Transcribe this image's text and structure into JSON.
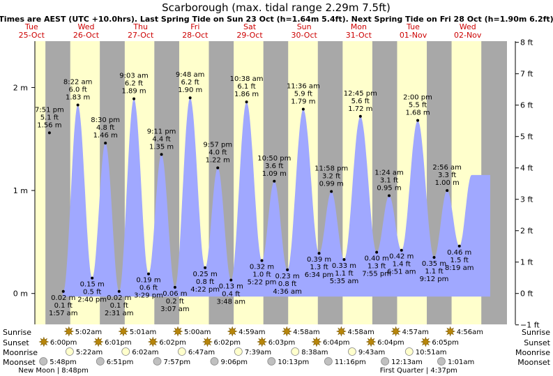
{
  "chart_data": {
    "type": "area",
    "title": "Scarborough (max. tidal range 2.29m 7.5ft)",
    "subtitle": "Times are AEST (UTC +10.0hrs). Last Spring Tide on Sun 23 Oct (h=1.64m 5.4ft). Next Spring Tide on Fri 28 Oct (h=1.90m 6.2ft)",
    "ylabel_left": "m",
    "ylabel_right": "ft",
    "ylim_m": [
      -0.3,
      2.45
    ],
    "y_ticks_m": [
      {
        "v": 0,
        "label": "0 m"
      },
      {
        "v": 1,
        "label": "1 m"
      },
      {
        "v": 2,
        "label": "2 m"
      }
    ],
    "y_ticks_ft": [
      {
        "v": -1,
        "label": "−1 ft"
      },
      {
        "v": 0,
        "label": "0 ft"
      },
      {
        "v": 1,
        "label": "1 ft"
      },
      {
        "v": 2,
        "label": "2 ft"
      },
      {
        "v": 3,
        "label": "3 ft"
      },
      {
        "v": 4,
        "label": "4 ft"
      },
      {
        "v": 5,
        "label": "5 ft"
      },
      {
        "v": 6,
        "label": "6 ft"
      },
      {
        "v": 7,
        "label": "7 ft"
      },
      {
        "v": 8,
        "label": "8 ft"
      }
    ],
    "x_range_days": [
      0.56,
      9.22
    ],
    "days": [
      {
        "day": "Tue",
        "date": "25-Oct",
        "center": 0.5
      },
      {
        "day": "Wed",
        "date": "26-Oct",
        "center": 1.5
      },
      {
        "day": "Thu",
        "date": "27-Oct",
        "center": 2.5
      },
      {
        "day": "Fri",
        "date": "28-Oct",
        "center": 3.5
      },
      {
        "day": "Sat",
        "date": "29-Oct",
        "center": 4.5
      },
      {
        "day": "Sun",
        "date": "30-Oct",
        "center": 5.5
      },
      {
        "day": "Mon",
        "date": "31-Oct",
        "center": 6.5
      },
      {
        "day": "Tue",
        "date": "01-Nov",
        "center": 7.5
      },
      {
        "day": "Wed",
        "date": "02-Nov",
        "center": 8.5
      }
    ],
    "night_bands": [
      [
        0.56,
        0.2097
      ],
      [
        0.7535,
        1.209
      ],
      [
        1.7514,
        2.2083
      ],
      [
        2.7514,
        3.2076
      ],
      [
        3.7514,
        4.2069
      ],
      [
        4.7514,
        5.2063
      ],
      [
        5.7507,
        6.2056
      ],
      [
        6.75,
        7.2049
      ],
      [
        7.7493,
        8.2042
      ],
      [
        8.7493,
        9.22
      ]
    ],
    "tides": [
      {
        "t": 0.8271,
        "h": 1.56,
        "type": "high",
        "time": "7:51 pm",
        "ft": "5.1 ft",
        "m": "1.56 m"
      },
      {
        "t": 1.0813,
        "h": 0.02,
        "type": "low",
        "time": "1:57 am",
        "ft": "0.1 ft",
        "m": "0.02 m"
      },
      {
        "t": 1.3486,
        "h": 1.83,
        "type": "high",
        "time": "8:22 am",
        "ft": "6.0 ft",
        "m": "1.83 m"
      },
      {
        "t": 1.6111,
        "h": 0.15,
        "type": "low",
        "time": "2:40 pm",
        "ft": "0.5 ft",
        "m": "0.15 m"
      },
      {
        "t": 1.8542,
        "h": 1.46,
        "type": "high",
        "time": "8:30 pm",
        "ft": "4.8 ft",
        "m": "1.46 m"
      },
      {
        "t": 2.1049,
        "h": 0.02,
        "type": "low",
        "time": "2:31 am",
        "ft": "0.1 ft",
        "m": "0.02 m"
      },
      {
        "t": 2.3771,
        "h": 1.89,
        "type": "high",
        "time": "9:03 am",
        "ft": "6.2 ft",
        "m": "1.89 m"
      },
      {
        "t": 2.6451,
        "h": 0.19,
        "type": "low",
        "time": "3:29 pm",
        "ft": "0.6 ft",
        "m": "0.19 m"
      },
      {
        "t": 2.8826,
        "h": 1.35,
        "type": "high",
        "time": "9:11 pm",
        "ft": "4.4 ft",
        "m": "1.35 m"
      },
      {
        "t": 3.1299,
        "h": 0.06,
        "type": "low",
        "time": "3:07 am",
        "ft": "0.2 ft",
        "m": "0.06 m"
      },
      {
        "t": 3.4083,
        "h": 1.9,
        "type": "high",
        "time": "9:48 am",
        "ft": "6.2 ft",
        "m": "1.90 m"
      },
      {
        "t": 3.6826,
        "h": 0.25,
        "type": "low",
        "time": "4:22 pm",
        "ft": "0.8 ft",
        "m": "0.25 m"
      },
      {
        "t": 3.9146,
        "h": 1.22,
        "type": "high",
        "time": "9:57 pm",
        "ft": "4.0 ft",
        "m": "1.22 m"
      },
      {
        "t": 4.1583,
        "h": 0.13,
        "type": "low",
        "time": "3:48 am",
        "ft": "0.4 ft",
        "m": "0.13 m"
      },
      {
        "t": 4.4431,
        "h": 1.86,
        "type": "high",
        "time": "10:38 am",
        "ft": "6.1 ft",
        "m": "1.86 m"
      },
      {
        "t": 4.7236,
        "h": 0.32,
        "type": "low",
        "time": "5:22 pm",
        "ft": "1.0 ft",
        "m": "0.32 m"
      },
      {
        "t": 4.9514,
        "h": 1.09,
        "type": "high",
        "time": "10:50 pm",
        "ft": "3.6 ft",
        "m": "1.09 m"
      },
      {
        "t": 5.1917,
        "h": 0.23,
        "type": "low",
        "time": "4:36 am",
        "ft": "0.8 ft",
        "m": "0.23 m"
      },
      {
        "t": 5.4833,
        "h": 1.79,
        "type": "high",
        "time": "11:36 am",
        "ft": "5.9 ft",
        "m": "1.79 m"
      },
      {
        "t": 5.7736,
        "h": 0.39,
        "type": "low",
        "time": "6:34 pm",
        "ft": "1.3 ft",
        "m": "0.39 m"
      },
      {
        "t": 5.9986,
        "h": 0.99,
        "type": "high",
        "time": "11:58 pm",
        "ft": "3.2 ft",
        "m": "0.99 m"
      },
      {
        "t": 6.2326,
        "h": 0.33,
        "type": "low",
        "time": "5:35 am",
        "ft": "1.1 ft",
        "m": "0.33 m"
      },
      {
        "t": 6.5313,
        "h": 1.72,
        "type": "high",
        "time": "12:45 pm",
        "ft": "5.6 ft",
        "m": "1.72 m"
      },
      {
        "t": 6.8299,
        "h": 0.4,
        "type": "low",
        "time": "7:55 pm",
        "ft": "1.3 ft",
        "m": "0.40 m"
      },
      {
        "t": 7.0583,
        "h": 0.95,
        "type": "high",
        "time": "1:24 am",
        "ft": "3.1 ft",
        "m": "0.95 m"
      },
      {
        "t": 7.2854,
        "h": 0.42,
        "type": "low",
        "time": "6:51 am",
        "ft": "1.4 ft",
        "m": "0.42 m"
      },
      {
        "t": 7.5833,
        "h": 1.68,
        "type": "high",
        "time": "2:00 pm",
        "ft": "5.5 ft",
        "m": "1.68 m"
      },
      {
        "t": 7.8833,
        "h": 0.35,
        "type": "low",
        "time": "9:12 pm",
        "ft": "1.1 ft",
        "m": "0.35 m"
      },
      {
        "t": 8.1222,
        "h": 1.0,
        "type": "high",
        "time": "2:56 am",
        "ft": "3.3 ft",
        "m": "1.00 m"
      },
      {
        "t": 8.3465,
        "h": 0.46,
        "type": "low",
        "time": "8:19 am",
        "ft": "1.5 ft",
        "m": "0.46 m"
      }
    ],
    "astro_row_labels": [
      "Sunrise",
      "Sunset",
      "Moonrise",
      "Moonset"
    ],
    "astro": [
      {
        "row": 0,
        "t": 1.2097,
        "text": "5:02am",
        "icon": "sun-icon"
      },
      {
        "row": 0,
        "t": 2.209,
        "text": "5:01am",
        "icon": "sun-icon"
      },
      {
        "row": 0,
        "t": 3.2083,
        "text": "5:00am",
        "icon": "sun-icon"
      },
      {
        "row": 0,
        "t": 4.2076,
        "text": "4:59am",
        "icon": "sun-icon"
      },
      {
        "row": 0,
        "t": 5.2069,
        "text": "4:58am",
        "icon": "sun-icon"
      },
      {
        "row": 0,
        "t": 6.2069,
        "text": "4:58am",
        "icon": "sun-icon"
      },
      {
        "row": 0,
        "t": 7.2063,
        "text": "4:57am",
        "icon": "sun-icon"
      },
      {
        "row": 0,
        "t": 8.2056,
        "text": "4:56am",
        "icon": "sun-icon"
      },
      {
        "row": 1,
        "t": 0.75,
        "text": "6:00pm",
        "icon": "sun-icon"
      },
      {
        "row": 1,
        "t": 1.7507,
        "text": "6:01pm",
        "icon": "sun-icon"
      },
      {
        "row": 1,
        "t": 2.7514,
        "text": "6:02pm",
        "icon": "sun-icon"
      },
      {
        "row": 1,
        "t": 3.7514,
        "text": "6:02pm",
        "icon": "sun-icon"
      },
      {
        "row": 1,
        "t": 4.7521,
        "text": "6:03pm",
        "icon": "sun-icon"
      },
      {
        "row": 1,
        "t": 5.7528,
        "text": "6:04pm",
        "icon": "sun-icon"
      },
      {
        "row": 1,
        "t": 6.7528,
        "text": "6:04pm",
        "icon": "sun-icon"
      },
      {
        "row": 1,
        "t": 7.7535,
        "text": "6:05pm",
        "icon": "sun-icon"
      },
      {
        "row": 2,
        "t": 1.2236,
        "text": "5:22am",
        "icon": "moonrise-icon"
      },
      {
        "row": 2,
        "t": 2.2514,
        "text": "6:02am",
        "icon": "moonrise-icon"
      },
      {
        "row": 2,
        "t": 3.2826,
        "text": "6:47am",
        "icon": "moonrise-icon"
      },
      {
        "row": 2,
        "t": 4.3188,
        "text": "7:39am",
        "icon": "moonrise-icon"
      },
      {
        "row": 2,
        "t": 5.3597,
        "text": "8:38am",
        "icon": "moonrise-icon"
      },
      {
        "row": 2,
        "t": 6.4049,
        "text": "9:43am",
        "icon": "moonrise-icon"
      },
      {
        "row": 2,
        "t": 7.4521,
        "text": "10:51am",
        "icon": "moonrise-icon"
      },
      {
        "row": 3,
        "t": 0.7417,
        "text": "5:48pm",
        "icon": "moonset-icon"
      },
      {
        "row": 3,
        "t": 1.7854,
        "text": "6:51pm",
        "icon": "moonset-icon"
      },
      {
        "row": 3,
        "t": 2.8313,
        "text": "7:57pm",
        "icon": "moonset-icon"
      },
      {
        "row": 3,
        "t": 3.8792,
        "text": "9:06pm",
        "icon": "moonset-icon"
      },
      {
        "row": 3,
        "t": 4.9257,
        "text": "10:13pm",
        "icon": "moonset-icon"
      },
      {
        "row": 3,
        "t": 5.9694,
        "text": "11:16pm",
        "icon": "moonset-icon"
      },
      {
        "row": 3,
        "t": 7.009,
        "text": "12:13am",
        "icon": "moonset-icon"
      },
      {
        "row": 3,
        "t": 8.0424,
        "text": "1:01am",
        "icon": "moonset-icon"
      }
    ],
    "moon_phases": [
      {
        "t": 0.9,
        "text": "New Moon | 8:48pm"
      },
      {
        "t": 7.6,
        "text": "First Quarter | 4:37pm"
      }
    ],
    "colors": {
      "night": "#a8a8a8",
      "day": "#ffffcc",
      "water": "#a0a8ff",
      "title": "#000000",
      "date": "#cc0000",
      "sun": "#b8860b",
      "moon_rise": "#ffffcc",
      "moon_set": "#c0c0c0"
    }
  }
}
